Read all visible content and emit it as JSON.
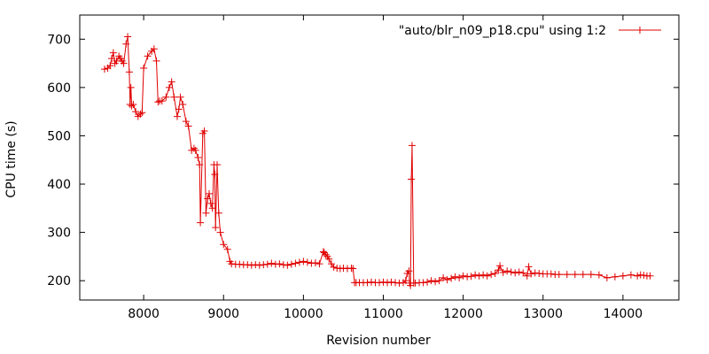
{
  "chart_data": {
    "type": "line",
    "title": "",
    "xlabel": "Revision number",
    "ylabel": "CPU time (s)",
    "xlim": [
      7200,
      14700
    ],
    "ylim": [
      160,
      750
    ],
    "xticks": [
      8000,
      9000,
      10000,
      11000,
      12000,
      13000,
      14000
    ],
    "yticks": [
      200,
      300,
      400,
      500,
      600,
      700
    ],
    "xtick_labels": [
      "8000",
      "9000",
      "10000",
      "11000",
      "12000",
      "13000",
      "14000"
    ],
    "ytick_labels": [
      "200",
      "300",
      "400",
      "500",
      "600",
      "700"
    ],
    "legend_position": "top-right",
    "grid": false,
    "colors": {
      "series": "#e00000",
      "frame": "#000000"
    },
    "series": [
      {
        "name": "\"auto/blr_n09_p18.cpu\" using 1:2",
        "marker": "plus",
        "x": [
          7510,
          7550,
          7580,
          7600,
          7620,
          7640,
          7660,
          7690,
          7710,
          7730,
          7750,
          7780,
          7800,
          7820,
          7830,
          7840,
          7850,
          7870,
          7900,
          7930,
          7960,
          7980,
          8000,
          8050,
          8100,
          8130,
          8160,
          8180,
          8200,
          8230,
          8280,
          8320,
          8350,
          8380,
          8420,
          8440,
          8460,
          8490,
          8530,
          8560,
          8600,
          8630,
          8650,
          8680,
          8700,
          8710,
          8740,
          8760,
          8780,
          8800,
          8820,
          8840,
          8860,
          8880,
          8890,
          8900,
          8920,
          8940,
          8960,
          9000,
          9050,
          9080,
          9100,
          9150,
          9200,
          9250,
          9300,
          9350,
          9400,
          9450,
          9500,
          9550,
          9600,
          9650,
          9700,
          9750,
          9800,
          9850,
          9900,
          9950,
          10000,
          10050,
          10100,
          10150,
          10200,
          10250,
          10260,
          10280,
          10300,
          10320,
          10350,
          10380,
          10420,
          10460,
          10500,
          10550,
          10600,
          10620,
          10640,
          10660,
          10700,
          10750,
          10800,
          10850,
          10900,
          10950,
          11000,
          11050,
          11100,
          11150,
          11200,
          11250,
          11280,
          11300,
          11320,
          11330,
          11340,
          11350,
          11360,
          11380,
          11400,
          11450,
          11500,
          11550,
          11600,
          11650,
          11700,
          11750,
          11800,
          11850,
          11900,
          11950,
          12000,
          12050,
          12100,
          12150,
          12200,
          12250,
          12300,
          12350,
          12400,
          12440,
          12460,
          12500,
          12550,
          12600,
          12650,
          12700,
          12750,
          12800,
          12820,
          12850,
          12900,
          12950,
          13000,
          13050,
          13100,
          13150,
          13200,
          13300,
          13400,
          13500,
          13600,
          13700,
          13800,
          13900,
          14000,
          14100,
          14180,
          14220,
          14260,
          14300,
          14340
        ],
        "y": [
          638,
          640,
          645,
          660,
          672,
          650,
          655,
          665,
          660,
          655,
          650,
          690,
          705,
          632,
          565,
          600,
          562,
          565,
          550,
          540,
          545,
          548,
          640,
          665,
          675,
          680,
          655,
          570,
          572,
          572,
          580,
          600,
          612,
          580,
          540,
          555,
          580,
          565,
          530,
          520,
          470,
          474,
          470,
          455,
          440,
          320,
          505,
          510,
          340,
          370,
          380,
          360,
          350,
          440,
          420,
          310,
          440,
          340,
          300,
          275,
          265,
          240,
          235,
          234,
          234,
          233,
          233,
          232,
          233,
          232,
          233,
          234,
          236,
          234,
          235,
          233,
          232,
          234,
          236,
          238,
          240,
          238,
          236,
          237,
          235,
          260,
          258,
          254,
          250,
          245,
          235,
          228,
          226,
          225,
          226,
          225,
          226,
          225,
          196,
          196,
          196,
          196,
          196,
          197,
          196,
          196,
          197,
          196,
          197,
          196,
          195,
          196,
          200,
          215,
          220,
          195,
          190,
          410,
          480,
          195,
          195,
          196,
          196,
          197,
          200,
          198,
          200,
          206,
          202,
          205,
          208,
          206,
          210,
          208,
          209,
          212,
          210,
          212,
          210,
          213,
          215,
          222,
          231,
          217,
          220,
          218,
          216,
          218,
          216,
          210,
          229,
          214,
          216,
          215,
          214,
          214,
          214,
          213,
          213,
          213,
          213,
          213,
          213,
          212,
          206,
          208,
          210,
          212,
          210,
          212,
          211,
          210,
          210
        ]
      }
    ]
  }
}
